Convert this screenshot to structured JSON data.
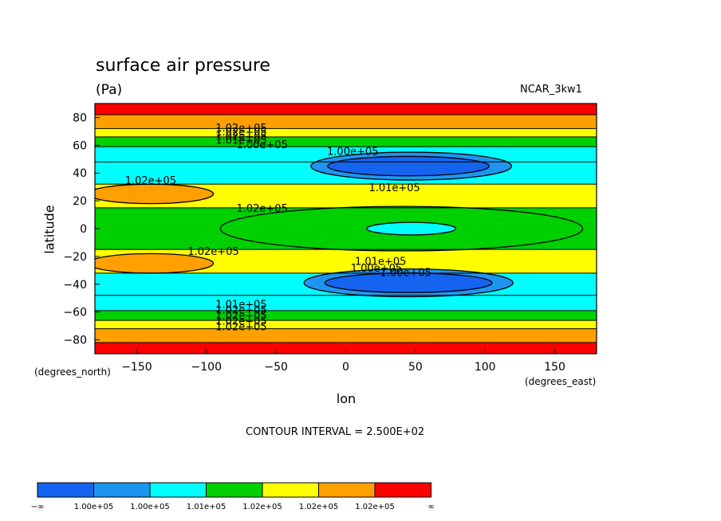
{
  "chart_data": {
    "type": "heatmap",
    "subtype": "filled-contour",
    "title": "surface air pressure",
    "units": "(Pa)",
    "model_label": "NCAR_3kw1",
    "xlabel": "lon",
    "ylabel": "latitude",
    "x_units": "(degrees_east)",
    "y_units": "(degrees_north)",
    "xlim": [
      -180,
      180
    ],
    "ylim": [
      -90,
      90
    ],
    "x_ticks": [
      -150,
      -100,
      -50,
      0,
      50,
      100,
      150
    ],
    "x_tick_labels": [
      "−150",
      "−100",
      "−50",
      "0",
      "50",
      "100",
      "150"
    ],
    "y_ticks": [
      80,
      60,
      40,
      20,
      0,
      -20,
      -40,
      -60,
      -80
    ],
    "y_tick_labels": [
      "80",
      "60",
      "40",
      "20",
      "0",
      "−20",
      "−40",
      "−60",
      "−80"
    ],
    "contour_interval_text": "CONTOUR INTERVAL = 2.500E+02",
    "colorbar": {
      "colors": [
        "#1464f0",
        "#1e96f0",
        "#00ffff",
        "#00d000",
        "#ffff00",
        "#ffa000",
        "#ff0000"
      ],
      "labels": [
        "−∞",
        "1.00e+05",
        "1.00e+05",
        "1.01e+05",
        "1.02e+05",
        "1.02e+05",
        "1.02e+05",
        "∞"
      ]
    },
    "bands": [
      {
        "lat": [
          82,
          90
        ],
        "color": "#ff0000"
      },
      {
        "lat": [
          72,
          82
        ],
        "color": "#ffa000"
      },
      {
        "lat": [
          66,
          72
        ],
        "color": "#ffff00"
      },
      {
        "lat": [
          59,
          66
        ],
        "color": "#00d000"
      },
      {
        "lat": [
          48,
          59
        ],
        "color": "#00ffff"
      },
      {
        "lat": [
          32,
          48
        ],
        "color": "#00ffff"
      },
      {
        "lat": [
          15,
          32
        ],
        "color": "#ffff00"
      },
      {
        "lat": [
          -15,
          15
        ],
        "color": "#00d000"
      },
      {
        "lat": [
          -32,
          -15
        ],
        "color": "#ffff00"
      },
      {
        "lat": [
          -48,
          -32
        ],
        "color": "#00ffff"
      },
      {
        "lat": [
          -59,
          -48
        ],
        "color": "#00ffff"
      },
      {
        "lat": [
          -66,
          -59
        ],
        "color": "#00d000"
      },
      {
        "lat": [
          -72,
          -66
        ],
        "color": "#ffff00"
      },
      {
        "lat": [
          -82,
          -72
        ],
        "color": "#ffa000"
      },
      {
        "lat": [
          -90,
          -82
        ],
        "color": "#ff0000"
      }
    ],
    "regions": [
      {
        "lon": 47,
        "lat": 45,
        "rx": 72,
        "ry": 10,
        "color": "#1e96f0"
      },
      {
        "lon": 45,
        "lat": 45,
        "rx": 58,
        "ry": 7,
        "color": "#1464f0"
      },
      {
        "lon": 45,
        "lat": -39,
        "rx": 75,
        "ry": 10,
        "color": "#1e96f0"
      },
      {
        "lon": 45,
        "lat": -39,
        "rx": 60,
        "ry": 7,
        "color": "#1464f0"
      },
      {
        "lon": -140,
        "lat": 25,
        "rx": 45,
        "ry": 7,
        "color": "#ffa000"
      },
      {
        "lon": -140,
        "lat": -25,
        "rx": 45,
        "ry": 7,
        "color": "#ffa000"
      },
      {
        "lon": 40,
        "lat": 0,
        "rx": 130,
        "ry": 16,
        "color": "#00d000"
      },
      {
        "lon": 47,
        "lat": 0,
        "rx": 32,
        "ry": 4.5,
        "color": "#00ffff"
      }
    ],
    "contour_labels": [
      {
        "lon": -75,
        "lat": 70,
        "text": "1.02e+05"
      },
      {
        "lon": -75,
        "lat": 67,
        "text": "1.02e+05"
      },
      {
        "lon": -75,
        "lat": 64,
        "text": "1.02e+05"
      },
      {
        "lon": -75,
        "lat": 61,
        "text": "1.01e+05"
      },
      {
        "lon": -60,
        "lat": 58,
        "text": "1.00e+05"
      },
      {
        "lon": 5,
        "lat": 53,
        "text": "1.00e+05"
      },
      {
        "lon": -140,
        "lat": 32,
        "text": "1.02e+05"
      },
      {
        "lon": 35,
        "lat": 27,
        "text": "1.01e+05"
      },
      {
        "lon": -60,
        "lat": 12,
        "text": "1.02e+05"
      },
      {
        "lon": -95,
        "lat": -19,
        "text": "1.02e+05"
      },
      {
        "lon": 25,
        "lat": -26,
        "text": "1.01e+05"
      },
      {
        "lon": 22,
        "lat": -31,
        "text": "1.00e+05"
      },
      {
        "lon": 43,
        "lat": -34,
        "text": "1.00e+05"
      },
      {
        "lon": -75,
        "lat": -57,
        "text": "1.01e+05"
      },
      {
        "lon": -75,
        "lat": -61,
        "text": "1.02e+05"
      },
      {
        "lon": -75,
        "lat": -65,
        "text": "1.02e+05"
      },
      {
        "lon": -75,
        "lat": -69,
        "text": "1.02e+05"
      },
      {
        "lon": -75,
        "lat": -73,
        "text": "1.02e+05"
      }
    ]
  }
}
